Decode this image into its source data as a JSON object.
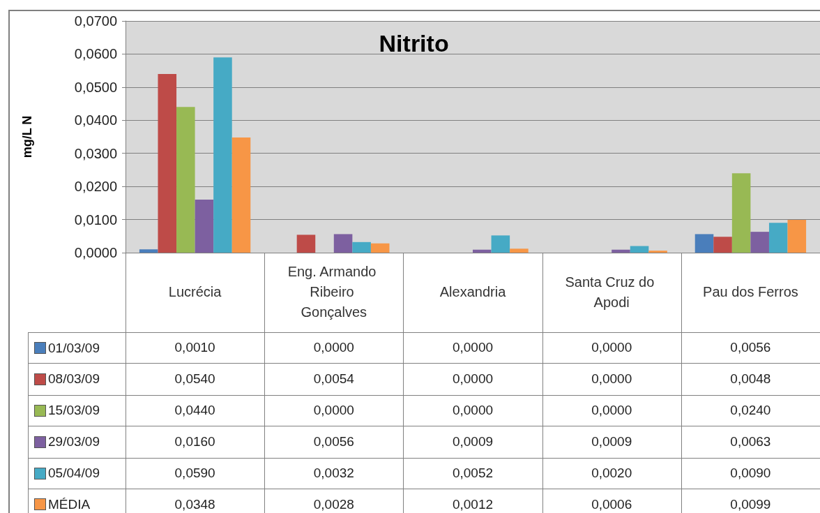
{
  "chart_data": {
    "type": "bar",
    "title": "Nitrito",
    "ylabel": "mg/L N",
    "categories": [
      "Lucrécia",
      "Eng. Armando Ribeiro Gonçalves",
      "Alexandria",
      "Santa Cruz do Apodi",
      "Pau dos Ferros"
    ],
    "series": [
      {
        "name": "01/03/09",
        "color": "#4a7ebb",
        "values": [
          0.001,
          0.0,
          0.0,
          0.0,
          0.0056
        ],
        "value_labels": [
          "0,0010",
          "0,0000",
          "0,0000",
          "0,0000",
          "0,0056"
        ]
      },
      {
        "name": "08/03/09",
        "color": "#be4b48",
        "values": [
          0.054,
          0.0054,
          0.0,
          0.0,
          0.0048
        ],
        "value_labels": [
          "0,0540",
          "0,0054",
          "0,0000",
          "0,0000",
          "0,0048"
        ]
      },
      {
        "name": "15/03/09",
        "color": "#98b954",
        "values": [
          0.044,
          0.0,
          0.0,
          0.0,
          0.024
        ],
        "value_labels": [
          "0,0440",
          "0,0000",
          "0,0000",
          "0,0000",
          "0,0240"
        ]
      },
      {
        "name": "29/03/09",
        "color": "#7d60a0",
        "values": [
          0.016,
          0.0056,
          0.0009,
          0.0009,
          0.0063
        ],
        "value_labels": [
          "0,0160",
          "0,0056",
          "0,0009",
          "0,0009",
          "0,0063"
        ]
      },
      {
        "name": "05/04/09",
        "color": "#46aac5",
        "values": [
          0.059,
          0.0032,
          0.0052,
          0.002,
          0.009
        ],
        "value_labels": [
          "0,0590",
          "0,0032",
          "0,0052",
          "0,0020",
          "0,0090"
        ]
      },
      {
        "name": "MÉDIA",
        "color": "#f79646",
        "values": [
          0.0348,
          0.0028,
          0.0012,
          0.0006,
          0.0099
        ],
        "value_labels": [
          "0,0348",
          "0,0028",
          "0,0012",
          "0,0006",
          "0,0099"
        ]
      }
    ],
    "ylim": [
      0,
      0.07
    ],
    "yticks": [
      {
        "value": 0,
        "label": "0,0000"
      },
      {
        "value": 0.01,
        "label": "0,0100"
      },
      {
        "value": 0.02,
        "label": "0,0200"
      },
      {
        "value": 0.03,
        "label": "0,0300"
      },
      {
        "value": 0.04,
        "label": "0,0400"
      },
      {
        "value": 0.05,
        "label": "0,0500"
      },
      {
        "value": 0.06,
        "label": "0,0600"
      },
      {
        "value": 0.07,
        "label": "0,0700"
      }
    ],
    "grid": "y",
    "legend": "bottom left"
  }
}
